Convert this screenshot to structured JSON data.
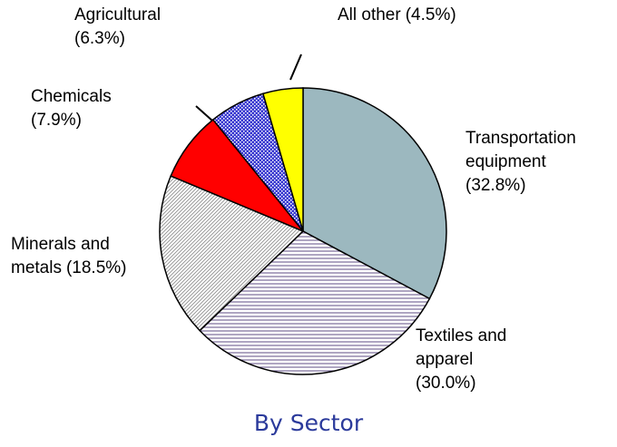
{
  "chart_data": {
    "type": "pie",
    "title": "By Sector",
    "categories": [
      "Transportation equipment",
      "Textiles and apparel",
      "Minerals and metals",
      "Chemicals",
      "Agricultural",
      "All other"
    ],
    "values": [
      32.8,
      30.0,
      18.5,
      7.9,
      6.3,
      4.5
    ],
    "value_labels": [
      "(32.8%)",
      "(30.0%)",
      "(18.5%)",
      "(7.9%)",
      "(6.3%)",
      "(4.5%)"
    ],
    "colors": [
      "#9cb8bf",
      "#7a6a9a",
      "#909090",
      "#ff0000",
      "#3a3ad0",
      "#ffff00"
    ],
    "patterns": [
      null,
      "horizontal",
      "diagonal",
      null,
      "dots",
      null
    ]
  }
}
